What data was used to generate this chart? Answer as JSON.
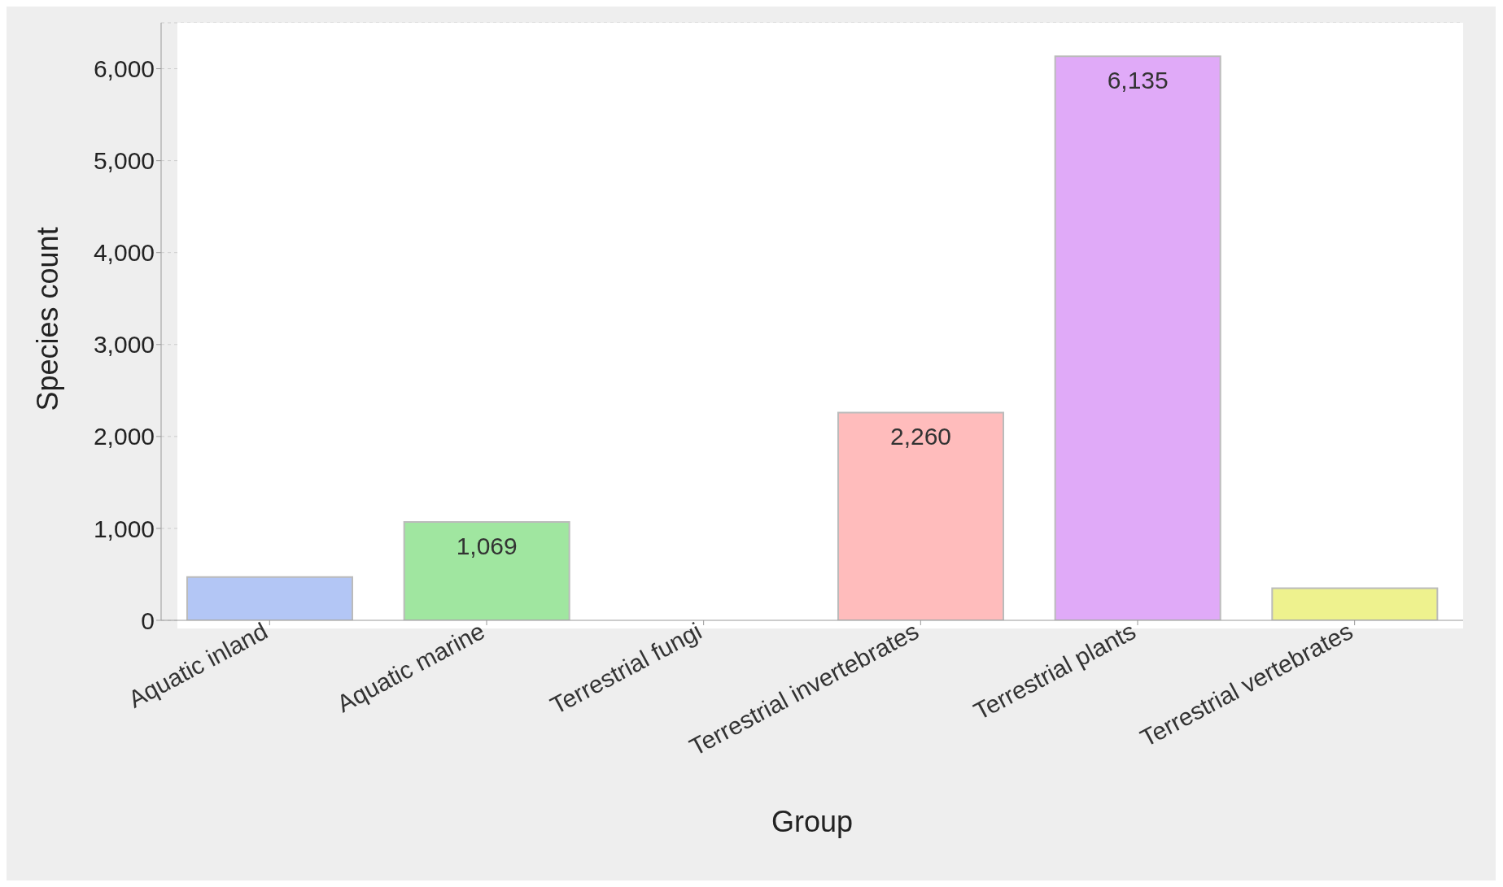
{
  "chart_data": {
    "type": "bar",
    "xlabel": "Group",
    "ylabel": "Species count",
    "categories": [
      "Aquatic inland",
      "Aquatic marine",
      "Terrestrial fungi",
      "Terrestrial invertebrates",
      "Terrestrial plants",
      "Terrestrial vertebrates"
    ],
    "values": [
      470,
      1069,
      null,
      2260,
      6135,
      350
    ],
    "value_labels": [
      null,
      "1,069",
      null,
      "2,260",
      "6,135",
      null
    ],
    "colors": [
      "#b3c6f5",
      "#a0e6a0",
      "#f5c89a",
      "#ffbcbc",
      "#e0aaf8",
      "#eef28e"
    ],
    "ylim": [
      0,
      6500
    ],
    "yticks": [
      {
        "value": 0,
        "label": "0"
      },
      {
        "value": 1000,
        "label": "1,000"
      },
      {
        "value": 2000,
        "label": "2,000"
      },
      {
        "value": 3000,
        "label": "3,000"
      },
      {
        "value": 4000,
        "label": "4,000"
      },
      {
        "value": 5000,
        "label": "5,000"
      },
      {
        "value": 6000,
        "label": "6,000"
      }
    ],
    "grid": "y"
  }
}
